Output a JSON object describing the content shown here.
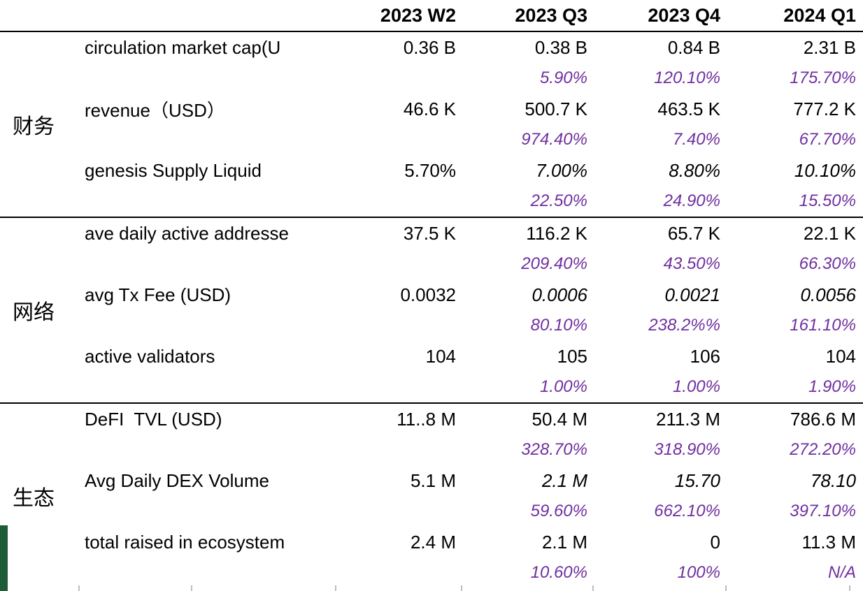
{
  "table": {
    "accent_color": "#7030A0",
    "green_bar_color": "#1e5c38",
    "columns": [
      "2023 W2",
      "2023 Q3",
      "2023 Q4",
      "2024 Q1"
    ],
    "sections": [
      {
        "category": "财务",
        "rows": [
          {
            "metric": "circulation market cap(U",
            "values": [
              "0.36 B",
              "0.38 B",
              "0.84 B",
              "2.31 B"
            ],
            "values_italic": [
              false,
              false,
              false,
              false
            ],
            "growth": [
              "",
              "5.90%",
              "120.10%",
              "175.70%"
            ]
          },
          {
            "metric": "revenue（USD）",
            "values": [
              "46.6 K",
              "500.7 K",
              "463.5 K",
              "777.2 K"
            ],
            "values_italic": [
              false,
              false,
              false,
              false
            ],
            "growth": [
              "",
              "974.40%",
              "7.40%",
              "67.70%"
            ]
          },
          {
            "metric": "genesis Supply Liquid",
            "values": [
              "5.70%",
              "7.00%",
              "8.80%",
              "10.10%"
            ],
            "values_italic": [
              false,
              true,
              true,
              true
            ],
            "growth": [
              "",
              "22.50%",
              "24.90%",
              "15.50%"
            ]
          }
        ]
      },
      {
        "category": "网络",
        "rows": [
          {
            "metric": "ave daily active addresse",
            "values": [
              "37.5 K",
              "116.2 K",
              "65.7 K",
              "22.1 K"
            ],
            "values_italic": [
              false,
              false,
              false,
              false
            ],
            "growth": [
              "",
              "209.40%",
              "43.50%",
              "66.30%"
            ]
          },
          {
            "metric": "avg Tx Fee (USD)",
            "values": [
              "0.0032",
              "0.0006",
              "0.0021",
              "0.0056"
            ],
            "values_italic": [
              false,
              true,
              true,
              true
            ],
            "growth": [
              "",
              "80.10%",
              "238.2%%",
              "161.10%"
            ]
          },
          {
            "metric": "active validators",
            "values": [
              "104",
              "105",
              "106",
              "104"
            ],
            "values_italic": [
              false,
              false,
              false,
              false
            ],
            "growth": [
              "",
              "1.00%",
              "1.00%",
              "1.90%"
            ]
          }
        ]
      },
      {
        "category": "生态",
        "rows": [
          {
            "metric": "DeFI  TVL (USD)",
            "values": [
              "11..8 M",
              "50.4 M",
              "211.3 M",
              "786.6 M"
            ],
            "values_italic": [
              false,
              false,
              false,
              false
            ],
            "growth": [
              "",
              "328.70%",
              "318.90%",
              "272.20%"
            ]
          },
          {
            "metric": "Avg Daily DEX Volume",
            "values": [
              "5.1 M",
              "2.1 M",
              "15.70",
              "78.10"
            ],
            "values_italic": [
              false,
              true,
              true,
              true
            ],
            "growth": [
              "",
              "59.60%",
              "662.10%",
              "397.10%"
            ]
          },
          {
            "metric": "total raised in ecosystem",
            "values": [
              "2.4 M",
              "2.1 M",
              "0",
              "11.3 M"
            ],
            "values_italic": [
              false,
              false,
              false,
              false
            ],
            "growth": [
              "",
              "10.60%",
              "100%",
              "N/A"
            ]
          }
        ]
      }
    ]
  }
}
